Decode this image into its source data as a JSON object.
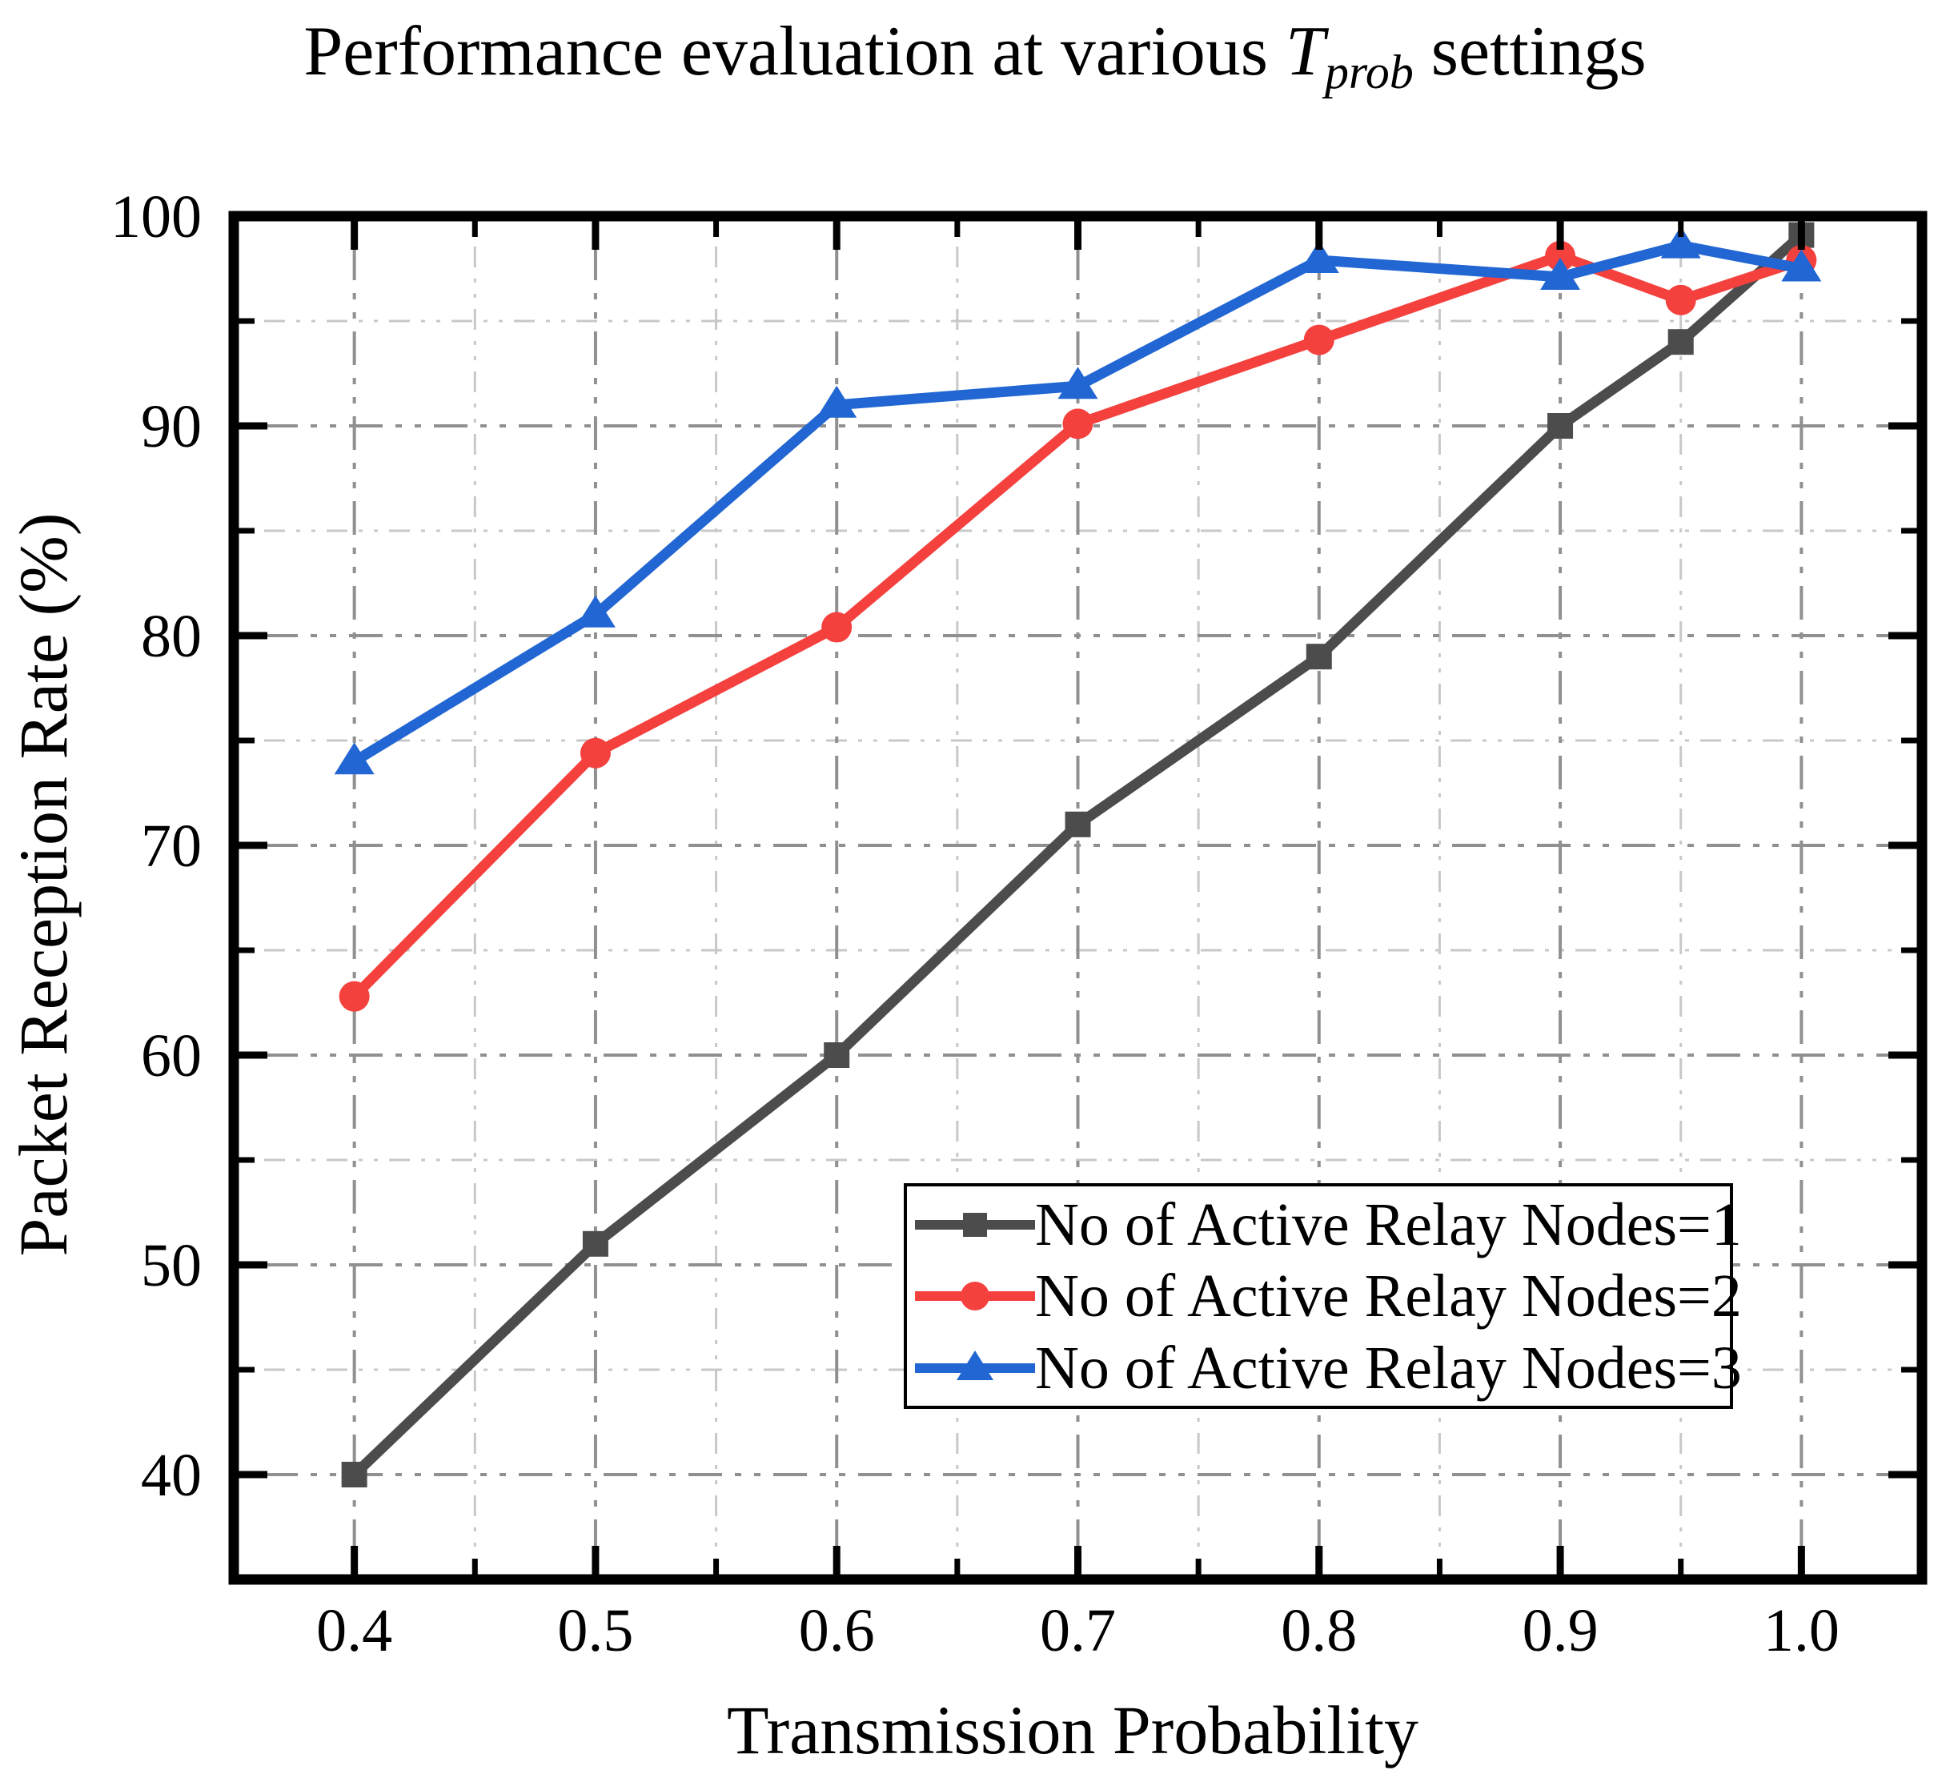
{
  "title": {
    "prefix": "Performance evaluation at various ",
    "variable": "T",
    "subscript": "prob",
    "suffix": " settings"
  },
  "chart_data": {
    "type": "line",
    "title": "Performance evaluation at various T_prob settings",
    "xlabel": "Transmission Probability",
    "ylabel": "Packet Reception Rate (%)",
    "x": [
      0.4,
      0.5,
      0.6,
      0.7,
      0.8,
      0.9,
      0.95,
      1.0
    ],
    "series": [
      {
        "name": "No of Active Relay Nodes=1",
        "marker": "square",
        "color": "#4c4c4c",
        "values": [
          40.0,
          51.0,
          60.0,
          71.0,
          79.0,
          90.0,
          94.0,
          99.1
        ]
      },
      {
        "name": "No of Active Relay Nodes=2",
        "marker": "circle",
        "color": "#f4413e",
        "values": [
          62.8,
          74.4,
          80.4,
          90.1,
          94.1,
          98.1,
          96.0,
          97.9
        ]
      },
      {
        "name": "No of Active Relay Nodes=3",
        "marker": "triangle",
        "color": "#2166d2",
        "values": [
          74.0,
          81.0,
          91.0,
          91.9,
          97.9,
          97.1,
          98.6,
          97.5
        ]
      }
    ],
    "xlim": [
      0.35,
      1.05
    ],
    "ylim": [
      35,
      100
    ],
    "x_major_ticks": [
      0.4,
      0.5,
      0.6,
      0.7,
      0.8,
      0.9,
      1.0
    ],
    "x_minor_ticks": [
      0.45,
      0.55,
      0.65,
      0.75,
      0.85,
      0.95
    ],
    "x_tick_labels": [
      "0.4",
      "0.5",
      "0.6",
      "0.7",
      "0.8",
      "0.9",
      "1.0"
    ],
    "y_major_ticks": [
      40,
      50,
      60,
      70,
      80,
      90,
      100
    ],
    "y_minor_ticks": [
      45,
      55,
      65,
      75,
      85,
      95
    ],
    "y_tick_labels": [
      "40",
      "50",
      "60",
      "70",
      "80",
      "90",
      "100"
    ],
    "grid": true,
    "legend_position": "inside-lower-right"
  },
  "colors": {
    "axis": "#000000",
    "grid_major": "#909090",
    "grid_minor": "#c8c8c8",
    "background": "#ffffff",
    "series1": "#4c4c4c",
    "series2": "#f4413e",
    "series3": "#2166d2"
  }
}
